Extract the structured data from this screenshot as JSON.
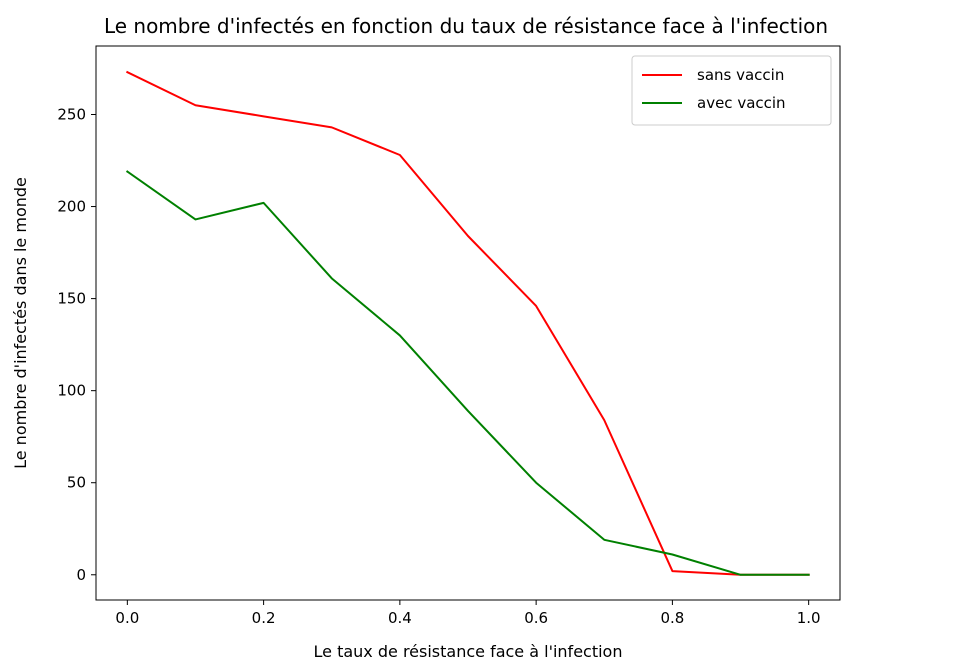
{
  "chart_data": {
    "type": "line",
    "title": "Le nombre d'infectés en fonction du taux de résistance face à l'infection",
    "xlabel": "Le taux de résistance face à l'infection",
    "ylabel": "Le nombre d'infectés dans le monde",
    "x": [
      0.0,
      0.1,
      0.2,
      0.3,
      0.4,
      0.5,
      0.6,
      0.7,
      0.8,
      0.9,
      1.0
    ],
    "xlim": [
      -0.046,
      1.046
    ],
    "ylim": [
      -13.7,
      287.2
    ],
    "xticks": [
      0.0,
      0.2,
      0.4,
      0.6,
      0.8,
      1.0
    ],
    "xtick_labels": [
      "0.0",
      "0.2",
      "0.4",
      "0.6",
      "0.8",
      "1.0"
    ],
    "yticks": [
      0,
      50,
      100,
      150,
      200,
      250
    ],
    "ytick_labels": [
      "0",
      "50",
      "100",
      "150",
      "200",
      "250"
    ],
    "grid": false,
    "legend_position": "top-right",
    "series": [
      {
        "name": "sans vaccin",
        "color": "#ff0000",
        "values": [
          273,
          255,
          249,
          243,
          228,
          184,
          146,
          84,
          2,
          0,
          0
        ]
      },
      {
        "name": "avec vaccin",
        "color": "#008000",
        "values": [
          219,
          193,
          202,
          161,
          130,
          89,
          50,
          19,
          11,
          0,
          0
        ]
      }
    ]
  }
}
